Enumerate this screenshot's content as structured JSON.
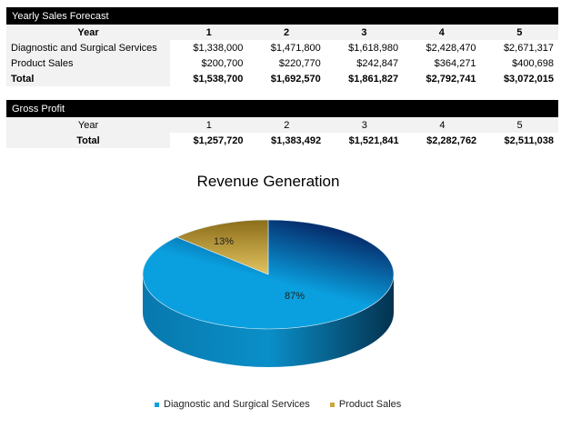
{
  "sales_forecast": {
    "title": "Yearly Sales Forecast",
    "year_label": "Year",
    "years": [
      "1",
      "2",
      "3",
      "4",
      "5"
    ],
    "rows": [
      {
        "label": "Diagnostic and Surgical Services",
        "values": [
          "$1,338,000",
          "$1,471,800",
          "$1,618,980",
          "$2,428,470",
          "$2,671,317"
        ]
      },
      {
        "label": "Product Sales",
        "values": [
          "$200,700",
          "$220,770",
          "$242,847",
          "$364,271",
          "$400,698"
        ]
      }
    ],
    "total": {
      "label": "Total",
      "values": [
        "$1,538,700",
        "$1,692,570",
        "$1,861,827",
        "$2,792,741",
        "$3,072,015"
      ]
    }
  },
  "gross_profit": {
    "title": "Gross Profit",
    "year_label": "Year",
    "years": [
      "1",
      "2",
      "3",
      "4",
      "5"
    ],
    "total": {
      "label": "Total",
      "values": [
        "$1,257,720",
        "$1,383,492",
        "$1,521,841",
        "$2,282,762",
        "$2,511,038"
      ]
    }
  },
  "chart_data": {
    "type": "pie",
    "title": "Revenue Generation",
    "style": "3d",
    "categories": [
      "Diagnostic and Surgical Services",
      "Product Sales"
    ],
    "values": [
      87,
      13
    ],
    "labels": [
      "87%",
      "13%"
    ],
    "colors": [
      "#0c9fdc",
      "#c9a73c"
    ],
    "legend": "bottom"
  }
}
